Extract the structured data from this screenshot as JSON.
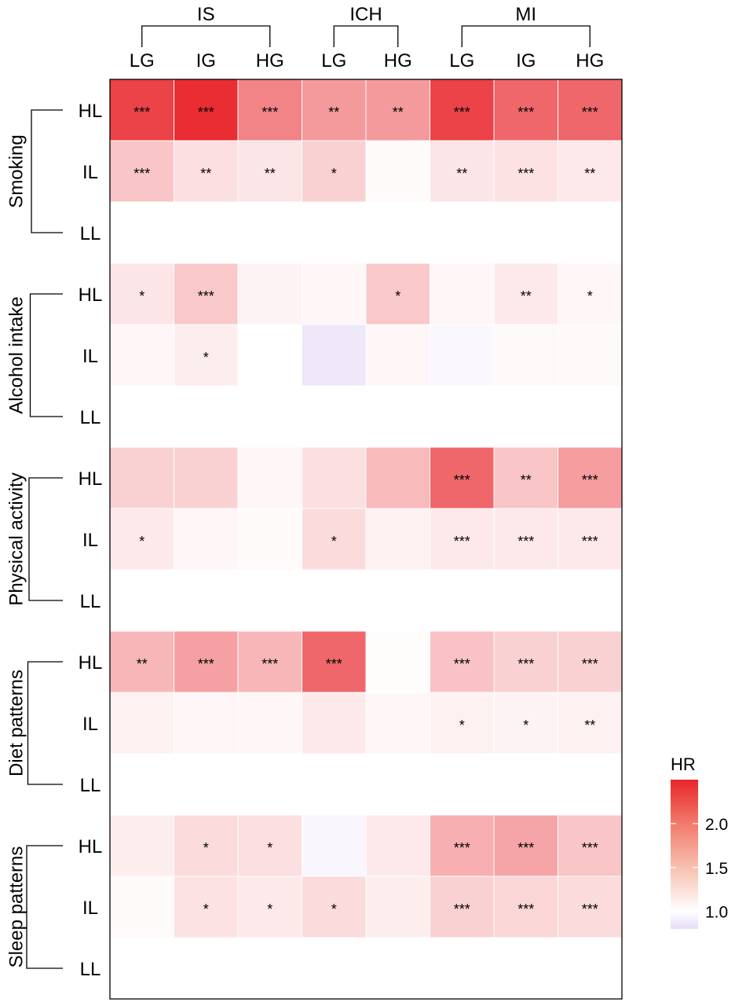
{
  "chart_data": {
    "type": "heatmap",
    "groups": [
      {
        "label": "IS",
        "columns": [
          "LG",
          "IG",
          "HG"
        ]
      },
      {
        "label": "ICH",
        "columns": [
          "LG",
          "HG"
        ]
      },
      {
        "label": "MI",
        "columns": [
          "LG",
          "IG",
          "HG"
        ]
      }
    ],
    "columns": [
      "LG",
      "IG",
      "HG",
      "LG",
      "HG",
      "LG",
      "IG",
      "HG"
    ],
    "factors": [
      {
        "name": "Smoking",
        "rows": [
          {
            "label": "HL",
            "values": [
              2.3,
              2.45,
              1.85,
              1.7,
              1.7,
              2.3,
              2.05,
              2.05
            ],
            "stars": [
              "***",
              "***",
              "***",
              "**",
              "**",
              "***",
              "***",
              "***"
            ]
          },
          {
            "label": "IL",
            "values": [
              1.4,
              1.22,
              1.18,
              1.32,
              1.03,
              1.18,
              1.2,
              1.15
            ],
            "stars": [
              "***",
              "**",
              "**",
              "*",
              "",
              "**",
              "***",
              "**"
            ]
          },
          {
            "label": "LL",
            "values": [
              1.0,
              1.0,
              1.0,
              1.0,
              1.0,
              1.0,
              1.0,
              1.0
            ],
            "stars": [
              "",
              "",
              "",
              "",
              "",
              "",
              "",
              ""
            ]
          }
        ]
      },
      {
        "name": "Alcohol intake",
        "rows": [
          {
            "label": "HL",
            "values": [
              1.18,
              1.38,
              1.08,
              1.06,
              1.38,
              1.06,
              1.15,
              1.06
            ],
            "stars": [
              "*",
              "***",
              "",
              "",
              "*",
              "",
              "**",
              "*"
            ]
          },
          {
            "label": "IL",
            "values": [
              1.06,
              1.12,
              1.0,
              0.86,
              1.06,
              0.96,
              1.04,
              1.04
            ],
            "stars": [
              "",
              "*",
              "",
              "",
              "",
              "",
              "",
              ""
            ]
          },
          {
            "label": "LL",
            "values": [
              1.0,
              1.0,
              1.0,
              1.0,
              1.0,
              1.0,
              1.0,
              1.0
            ],
            "stars": [
              "",
              "",
              "",
              "",
              "",
              "",
              "",
              ""
            ]
          }
        ]
      },
      {
        "name": "Physical activity",
        "rows": [
          {
            "label": "HL",
            "values": [
              1.32,
              1.32,
              1.06,
              1.22,
              1.48,
              2.05,
              1.4,
              1.68
            ],
            "stars": [
              "",
              "",
              "",
              "",
              "",
              "***",
              "**",
              "***"
            ]
          },
          {
            "label": "IL",
            "values": [
              1.15,
              1.06,
              1.03,
              1.25,
              1.1,
              1.15,
              1.15,
              1.15
            ],
            "stars": [
              "*",
              "",
              "",
              "*",
              "",
              "***",
              "***",
              "***"
            ]
          },
          {
            "label": "LL",
            "values": [
              1.0,
              1.0,
              1.0,
              1.0,
              1.0,
              1.0,
              1.0,
              1.0
            ],
            "stars": [
              "",
              "",
              "",
              "",
              "",
              "",
              "",
              ""
            ]
          }
        ]
      },
      {
        "name": "Diet patterns",
        "rows": [
          {
            "label": "HL",
            "values": [
              1.5,
              1.65,
              1.5,
              2.05,
              1.02,
              1.42,
              1.32,
              1.32
            ],
            "stars": [
              "**",
              "***",
              "***",
              "***",
              "",
              "***",
              "***",
              "***"
            ]
          },
          {
            "label": "IL",
            "values": [
              1.1,
              1.06,
              1.06,
              1.15,
              1.06,
              1.1,
              1.08,
              1.1
            ],
            "stars": [
              "",
              "",
              "",
              "",
              "",
              "*",
              "*",
              "**"
            ]
          },
          {
            "label": "LL",
            "values": [
              1.0,
              1.0,
              1.0,
              1.0,
              1.0,
              1.0,
              1.0,
              1.0
            ],
            "stars": [
              "",
              "",
              "",
              "",
              "",
              "",
              "",
              ""
            ]
          }
        ]
      },
      {
        "name": "Sleep patterns",
        "rows": [
          {
            "label": "HL",
            "values": [
              1.12,
              1.25,
              1.22,
              0.95,
              1.15,
              1.55,
              1.62,
              1.4
            ],
            "stars": [
              "",
              "*",
              "*",
              "",
              "",
              "***",
              "***",
              "***"
            ]
          },
          {
            "label": "IL",
            "values": [
              1.03,
              1.2,
              1.15,
              1.25,
              1.12,
              1.32,
              1.28,
              1.25
            ],
            "stars": [
              "",
              "*",
              "*",
              "*",
              "",
              "***",
              "***",
              "***"
            ]
          },
          {
            "label": "LL",
            "values": [
              1.0,
              1.0,
              1.0,
              1.0,
              1.0,
              1.0,
              1.0,
              1.0
            ],
            "stars": [
              "",
              "",
              "",
              "",
              "",
              "",
              "",
              ""
            ]
          }
        ]
      }
    ],
    "legend": {
      "title": "HR",
      "ticks": [
        1.0,
        1.5,
        2.0
      ],
      "tick_labels": [
        "1.0",
        "1.5",
        "2.0"
      ],
      "range": [
        0.8,
        2.5
      ],
      "position": "right"
    },
    "colors": {
      "high": "#e8262b",
      "mid": "#ffffff",
      "low": "#e6dcf8"
    }
  }
}
